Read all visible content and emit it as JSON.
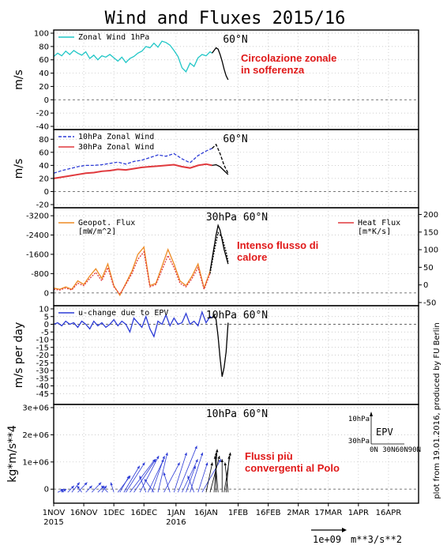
{
  "title": "Wind and Fluxes 2015/16",
  "credit": "plot from 19.01.2016, produced by FU Berlin",
  "colors": {
    "cyan": "#1fc6c6",
    "blue_dash": "#2c3bd6",
    "red": "#e0393d",
    "orange": "#ee8a22",
    "blue": "#2c3bd6",
    "forecast": "#000000",
    "annotation": "#e01818"
  },
  "xaxis": {
    "labels": [
      "1NOV",
      "16NOV",
      "1DEC",
      "16DEC",
      "1JAN",
      "16JAN",
      "1FEB",
      "16FEB",
      "2MAR",
      "17MAR",
      "1APR",
      "16APR"
    ],
    "label_days": [
      0,
      15,
      30,
      45,
      61,
      76,
      92,
      107,
      122,
      137,
      152,
      167
    ],
    "range": [
      0,
      182
    ],
    "year_labels": [
      "2015",
      "2016"
    ],
    "year_label_days": [
      0,
      61
    ]
  },
  "panels": [
    {
      "lat_label": "60°N",
      "annotation": "Circolazione zonale\nin sofferenza"
    },
    {
      "lat_label": "60°N",
      "annotation": ""
    },
    {
      "lat_label": "30hPa 60°N",
      "annotation": "Intenso flusso di\ncalore"
    },
    {
      "lat_label": "10hPa 60°N",
      "annotation": ""
    },
    {
      "lat_label": "10hPa 60°N",
      "annotation": "Flussi più\nconvergenti al Polo"
    }
  ],
  "scale_arrow": {
    "label1": "1e+09",
    "label2": "m**3/s**2"
  },
  "chart_data": [
    {
      "type": "line",
      "ylabel": "m/s",
      "ylim": [
        -40,
        100
      ],
      "yticks": [
        100,
        80,
        60,
        40,
        20,
        0,
        -20,
        -40
      ],
      "grid": true,
      "legend": [
        {
          "label": "Zonal Wind 1hPa",
          "style": "solid",
          "color": "#1fc6c6"
        }
      ],
      "series": [
        {
          "name": "Zonal Wind 1hPa",
          "style": "solid",
          "color": "#1fc6c6",
          "x": [
            0,
            2,
            4,
            6,
            8,
            10,
            12,
            14,
            16,
            18,
            20,
            22,
            24,
            26,
            28,
            30,
            32,
            34,
            36,
            38,
            40,
            42,
            44,
            46,
            48,
            50,
            52,
            54,
            56,
            58,
            60,
            62,
            64,
            66,
            68,
            70,
            72,
            74,
            76,
            78,
            79
          ],
          "y": [
            65,
            70,
            66,
            73,
            68,
            74,
            70,
            67,
            72,
            62,
            67,
            60,
            66,
            64,
            68,
            63,
            58,
            64,
            56,
            62,
            65,
            70,
            73,
            80,
            78,
            85,
            79,
            88,
            86,
            82,
            74,
            65,
            48,
            42,
            55,
            50,
            63,
            68,
            66,
            72,
            70
          ]
        },
        {
          "name": "",
          "style": "solid",
          "color": "#000000",
          "x": [
            79,
            80,
            81,
            82,
            83,
            84,
            85,
            86,
            87
          ],
          "y": [
            70,
            74,
            78,
            76,
            68,
            58,
            46,
            36,
            30
          ]
        }
      ]
    },
    {
      "type": "line",
      "ylabel": "m/s",
      "ylim": [
        -20,
        90
      ],
      "yticks": [
        80,
        60,
        40,
        20,
        0,
        -20
      ],
      "grid": true,
      "legend": [
        {
          "label": "10hPa Zonal Wind",
          "style": "dashed",
          "color": "#2c3bd6"
        },
        {
          "label": "30hPa Zonal Wind",
          "style": "solid",
          "color": "#e0393d"
        }
      ],
      "series": [
        {
          "name": "10hPa Zonal Wind",
          "style": "dashed",
          "color": "#2c3bd6",
          "x": [
            0,
            4,
            8,
            12,
            16,
            20,
            24,
            28,
            32,
            36,
            40,
            44,
            48,
            52,
            56,
            60,
            64,
            68,
            72,
            76,
            79
          ],
          "y": [
            28,
            32,
            35,
            38,
            40,
            40,
            41,
            43,
            45,
            42,
            46,
            48,
            52,
            56,
            54,
            58,
            50,
            44,
            55,
            62,
            66
          ]
        },
        {
          "name": "",
          "style": "dashed",
          "color": "#000000",
          "x": [
            79,
            81,
            83,
            85,
            87
          ],
          "y": [
            66,
            72,
            58,
            40,
            28
          ]
        },
        {
          "name": "30hPa Zonal Wind",
          "style": "solid",
          "color": "#e0393d",
          "x": [
            0,
            4,
            8,
            12,
            16,
            20,
            24,
            28,
            32,
            36,
            40,
            44,
            48,
            52,
            56,
            60,
            64,
            68,
            72,
            76,
            79
          ],
          "y": [
            20,
            22,
            24,
            26,
            28,
            29,
            31,
            32,
            34,
            33,
            35,
            37,
            38,
            39,
            40,
            41,
            38,
            36,
            40,
            42,
            40
          ],
          "width": 2
        },
        {
          "name": "",
          "style": "solid",
          "color": "#000000",
          "x": [
            79,
            81,
            83,
            85,
            87
          ],
          "y": [
            40,
            41,
            38,
            32,
            26
          ]
        }
      ]
    },
    {
      "type": "line",
      "ylabel": "",
      "ylim": [
        -3400,
        400
      ],
      "yticks": [
        -3200,
        -2400,
        -1600,
        -800,
        0
      ],
      "y2lim": [
        -50,
        210
      ],
      "y2ticks": [
        200,
        150,
        100,
        50,
        0,
        -50
      ],
      "grid": true,
      "legend": [
        {
          "label": "Geopot. Flux",
          "label2": "[mW/m^2]",
          "style": "solid",
          "color": "#ee8a22"
        },
        {
          "label": "Heat Flux",
          "label2": "[m*K/s]",
          "style": "solid",
          "color": "#e0393d"
        }
      ],
      "series": [
        {
          "name": "Geopot. Flux",
          "style": "solid",
          "color": "#ee8a22",
          "x": [
            0,
            3,
            6,
            9,
            12,
            15,
            18,
            21,
            24,
            27,
            30,
            33,
            36,
            39,
            42,
            45,
            48,
            51,
            54,
            57,
            60,
            63,
            66,
            69,
            72,
            75,
            78
          ],
          "y": [
            -200,
            -150,
            -250,
            -150,
            -500,
            -350,
            -700,
            -1000,
            -600,
            -1200,
            -300,
            100,
            -400,
            -900,
            -1600,
            -1900,
            -300,
            -400,
            -1100,
            -1800,
            -1200,
            -500,
            -300,
            -700,
            -1200,
            -200,
            -900
          ]
        },
        {
          "name": "Heat Flux",
          "style": "dotted",
          "color": "#e0393d",
          "x": [
            0,
            3,
            6,
            9,
            12,
            15,
            18,
            21,
            24,
            27,
            30,
            33,
            36,
            39,
            42,
            45,
            48,
            51,
            54,
            57,
            60,
            63,
            66,
            69,
            72,
            75,
            78
          ],
          "y": [
            -150,
            -120,
            -200,
            -120,
            -400,
            -300,
            -600,
            -850,
            -500,
            -1050,
            -250,
            50,
            -350,
            -800,
            -1400,
            -1700,
            -250,
            -350,
            -950,
            -1550,
            -1050,
            -400,
            -250,
            -600,
            -1050,
            -150,
            -800
          ]
        },
        {
          "name": "",
          "style": "solid",
          "color": "#000000",
          "x": [
            78,
            79,
            80,
            81,
            82,
            83,
            84,
            85,
            86,
            87
          ],
          "y": [
            -900,
            -1400,
            -1900,
            -2400,
            -2800,
            -2600,
            -2200,
            -1800,
            -1500,
            -1200
          ]
        },
        {
          "name": "",
          "style": "dotted",
          "color": "#000000",
          "x": [
            78,
            80,
            82,
            84,
            86,
            87
          ],
          "y": [
            -800,
            -1700,
            -2500,
            -2300,
            -1700,
            -1300
          ]
        }
      ]
    },
    {
      "type": "line",
      "ylabel": "m/s per day",
      "ylim": [
        -50,
        10
      ],
      "yticks": [
        10,
        5,
        0,
        -5,
        -10,
        -15,
        -20,
        -25,
        -30,
        -35,
        -40,
        -45
      ],
      "grid": true,
      "legend": [
        {
          "label": "u-change due to EPV",
          "style": "solid",
          "color": "#2c3bd6"
        }
      ],
      "series": [
        {
          "name": "u-change due to EPV",
          "style": "solid",
          "color": "#2c3bd6",
          "x": [
            0,
            2,
            4,
            6,
            8,
            10,
            12,
            14,
            16,
            18,
            20,
            22,
            24,
            26,
            28,
            30,
            32,
            34,
            36,
            38,
            40,
            42,
            44,
            46,
            48,
            50,
            52,
            54,
            56,
            58,
            60,
            62,
            64,
            66,
            68,
            70,
            72,
            74,
            76,
            78,
            79
          ],
          "y": [
            0,
            1,
            -1,
            2,
            0,
            1,
            -2,
            2,
            0,
            -3,
            2,
            -1,
            1,
            -2,
            0,
            3,
            -1,
            2,
            0,
            -5,
            4,
            1,
            -2,
            5,
            -3,
            -8,
            2,
            0,
            6,
            -1,
            4,
            0,
            1,
            7,
            0,
            2,
            -1,
            8,
            1,
            5,
            4
          ]
        },
        {
          "name": "",
          "style": "solid",
          "color": "#000000",
          "x": [
            79,
            80,
            81,
            82,
            83,
            84,
            85,
            86,
            87
          ],
          "y": [
            4,
            6,
            3,
            -8,
            -22,
            -34,
            -28,
            -18,
            1
          ]
        }
      ]
    },
    {
      "type": "quiver",
      "ylabel": "kg*m/s**4",
      "ylim": [
        -400000,
        3000000
      ],
      "yticks": [
        3000000,
        2000000,
        1000000,
        0
      ],
      "ytick_labels": [
        "3e+06",
        "2e+06",
        "1e+06",
        "0"
      ],
      "grid": true,
      "inset_legend": {
        "label": "EPV",
        "ylabels": [
          "10hPa",
          "30hPa"
        ],
        "xlabel": "0N 30N60N90N"
      },
      "series": [
        {
          "name": "EPV",
          "color": "#2c3bd6",
          "x": [
            2,
            4,
            5,
            7,
            9,
            12,
            14,
            16,
            19,
            22,
            24,
            27,
            30,
            32,
            33,
            35,
            36,
            38,
            40,
            43,
            46,
            47,
            49,
            50,
            52,
            55,
            58,
            60,
            62,
            64,
            66,
            68,
            70,
            72,
            74
          ],
          "u": [
            2,
            1.5,
            -1,
            2,
            2.5,
            3,
            -1.5,
            2,
            3,
            2,
            1.5,
            -2,
            -1,
            4,
            3,
            5,
            6,
            8,
            7,
            6,
            -2,
            5,
            4,
            -3,
            3,
            5,
            -2,
            4,
            6,
            5,
            3,
            4,
            -2,
            3,
            6
          ],
          "v": [
            1,
            1,
            1,
            2,
            3,
            3,
            2,
            2,
            3,
            2,
            2,
            2,
            3,
            5,
            5,
            8,
            9,
            10,
            10,
            11,
            5,
            10,
            11,
            4,
            12,
            9,
            6,
            12,
            14,
            10,
            8,
            12,
            5,
            9,
            10
          ]
        },
        {
          "name": "",
          "color": "#000000",
          "x": [
            76,
            78,
            80,
            81,
            82,
            84,
            85,
            86,
            87
          ],
          "u": [
            2,
            3,
            1,
            0,
            -1,
            0,
            2,
            1,
            -1
          ],
          "v": [
            9,
            11,
            13,
            12,
            11,
            10,
            12,
            11,
            9
          ]
        }
      ]
    }
  ]
}
